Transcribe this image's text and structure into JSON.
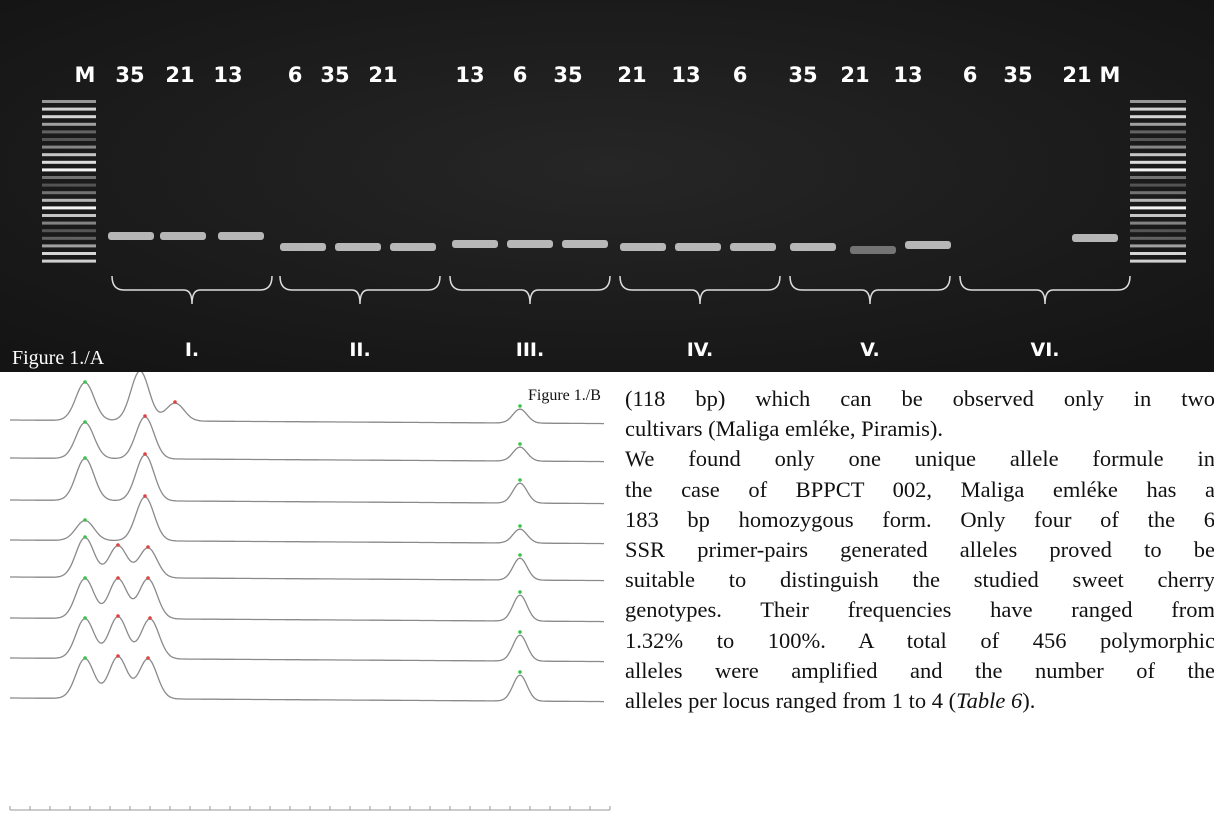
{
  "figure_a": {
    "caption": "Figure 1./A",
    "lane_labels": [
      "M",
      "35",
      "21",
      "13",
      "6",
      "35",
      "21",
      "13",
      "6",
      "35",
      "21",
      "13",
      "6",
      "35",
      "21",
      "13",
      "6",
      "35",
      "21",
      "M"
    ],
    "group_labels": [
      "I.",
      "II.",
      "III.",
      "IV.",
      "V.",
      "VI."
    ]
  },
  "figure_b": {
    "caption": "Figure 1./B"
  },
  "text": {
    "lines": [
      "(118 bp) which can be observed only in two",
      "cultivars (Maliga emléke, Piramis).",
      "We found only one unique allele formule in",
      "the case of BPPCT 002, Maliga emléke has a",
      "183 bp homozygous form. Only four of the 6",
      "SSR primer-pairs generated alleles proved to be",
      "suitable to distinguish the studied sweet cherry",
      "genotypes. Their frequencies have ranged from",
      "1.32% to 100%. A total of 456 polymorphic",
      "alleles were amplified and the number of the"
    ],
    "last_line": {
      "before": "alleles per locus ranged from 1 to 4 (",
      "italic": "Table 6",
      "after": ")."
    }
  }
}
